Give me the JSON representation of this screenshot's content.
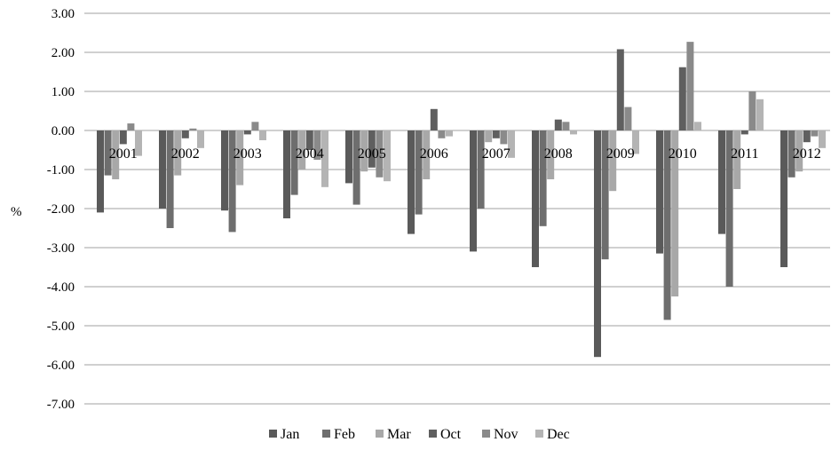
{
  "chart_data": {
    "type": "bar",
    "ylabel": "%",
    "ylim": [
      -7,
      3
    ],
    "ytick_step": 1,
    "ytick_labels": [
      "3.00",
      "2.00",
      "1.00",
      "0.00",
      "-1.00",
      "-2.00",
      "-3.00",
      "-4.00",
      "-5.00",
      "-6.00",
      "-7.00"
    ],
    "grid": true,
    "legend_position": "bottom",
    "categories": [
      "2001",
      "2002",
      "2003",
      "2004",
      "2005",
      "2006",
      "2007",
      "2008",
      "2009",
      "2010",
      "2011",
      "2012"
    ],
    "series": [
      {
        "name": "Jan",
        "color": "#5a5a5a",
        "values": [
          -2.1,
          -2.0,
          -2.05,
          -2.25,
          -1.35,
          -2.65,
          -3.1,
          -3.5,
          -5.8,
          -3.15,
          -2.65,
          -3.5
        ]
      },
      {
        "name": "Feb",
        "color": "#6e6e6e",
        "values": [
          -1.15,
          -2.5,
          -2.6,
          -1.65,
          -1.9,
          -2.15,
          -2.0,
          -2.45,
          -3.3,
          -4.85,
          -4.0,
          -1.2
        ]
      },
      {
        "name": "Mar",
        "color": "#a8a8a8",
        "values": [
          -1.25,
          -1.15,
          -1.4,
          -1.0,
          -1.05,
          -1.25,
          -0.3,
          -1.25,
          -1.55,
          -4.25,
          -1.5,
          -1.05
        ]
      },
      {
        "name": "Oct",
        "color": "#5f5f5f",
        "values": [
          -0.35,
          -0.2,
          -0.1,
          -0.5,
          -0.95,
          0.55,
          -0.2,
          0.28,
          2.08,
          1.62,
          -0.1,
          -0.3
        ]
      },
      {
        "name": "Nov",
        "color": "#8a8a8a",
        "values": [
          0.18,
          0.05,
          0.22,
          -0.75,
          -1.2,
          -0.2,
          -0.35,
          0.22,
          0.6,
          2.27,
          1.0,
          -0.15
        ]
      },
      {
        "name": "Dec",
        "color": "#b4b4b4",
        "values": [
          -0.65,
          -0.45,
          -0.25,
          -1.45,
          -1.3,
          -0.15,
          -0.7,
          -0.1,
          -0.6,
          0.22,
          0.8,
          -0.45
        ]
      }
    ]
  }
}
